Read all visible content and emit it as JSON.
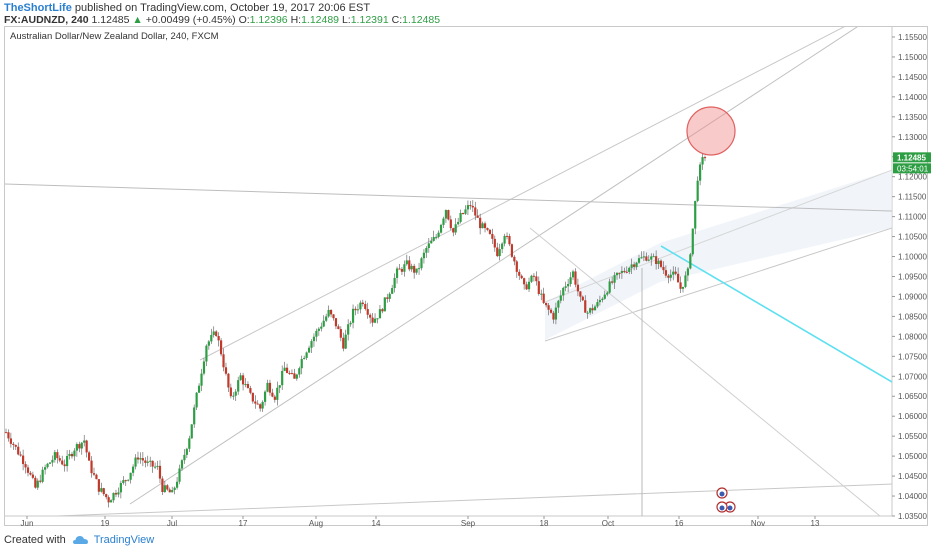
{
  "header": {
    "author": "TheShortLife",
    "published": "published on TradingView.com, October 19, 2017 20:06 EST",
    "symbol": "FX:AUDNZD, 240",
    "last": "1.12485",
    "change_arrow": "▲",
    "change": "+0.00499 (+0.45%)",
    "o_label": "O:",
    "o_value": "1.12396",
    "h_label": "H:",
    "h_value": "1.12489",
    "l_label": "L:",
    "l_value": "1.12391",
    "c_label": "C:",
    "c_value": "1.12485"
  },
  "footer": {
    "created_with": "Created with",
    "brand": "TradingView"
  },
  "colors": {
    "up": "#2e9e44",
    "down": "#c0392b",
    "accent": "#2a7fcf",
    "cyan": "#5ee0f0",
    "circle": "#f08a8a"
  },
  "chart_data": {
    "type": "candlestick",
    "title": "Australian Dollar/New Zealand Dollar, 240, FXCM",
    "x_ticks": [
      "Jun",
      "19",
      "Jul",
      "17",
      "Aug",
      "14",
      "Sep",
      "18",
      "Oct",
      "16",
      "Nov",
      "13"
    ],
    "y_ticks": [
      "1.15500",
      "1.15000",
      "1.14500",
      "1.14000",
      "1.13500",
      "1.13000",
      "1.12500",
      "1.12000",
      "1.11500",
      "1.11000",
      "1.10500",
      "1.10000",
      "1.09500",
      "1.09000",
      "1.08500",
      "1.08000",
      "1.07500",
      "1.07000",
      "1.06500",
      "1.06000",
      "1.05500",
      "1.05000",
      "1.04500",
      "1.04000",
      "1.03500"
    ],
    "ylim": [
      1.035,
      1.1575
    ],
    "price_label": "1.12485",
    "countdown_label": "03:54:01",
    "grid": false,
    "close_path": [
      [
        0,
        1.056
      ],
      [
        4,
        1.052
      ],
      [
        8,
        1.048
      ],
      [
        12,
        1.042
      ],
      [
        16,
        1.047
      ],
      [
        20,
        1.05
      ],
      [
        24,
        1.048
      ],
      [
        28,
        1.052
      ],
      [
        32,
        1.054
      ],
      [
        34,
        1.048
      ],
      [
        38,
        1.042
      ],
      [
        42,
        1.039
      ],
      [
        46,
        1.042
      ],
      [
        50,
        1.045
      ],
      [
        54,
        1.05
      ],
      [
        58,
        1.048
      ],
      [
        62,
        1.047
      ],
      [
        64,
        1.042
      ],
      [
        68,
        1.0405
      ],
      [
        71,
        1.046
      ],
      [
        75,
        1.055
      ],
      [
        78,
        1.065
      ],
      [
        82,
        1.078
      ],
      [
        86,
        1.081
      ],
      [
        88,
        1.076
      ],
      [
        92,
        1.064
      ],
      [
        96,
        1.07
      ],
      [
        100,
        1.065
      ],
      [
        104,
        1.062
      ],
      [
        107,
        1.068
      ],
      [
        110,
        1.065
      ],
      [
        114,
        1.072
      ],
      [
        118,
        1.069
      ],
      [
        120,
        1.073
      ],
      [
        124,
        1.078
      ],
      [
        128,
        1.082
      ],
      [
        132,
        1.086
      ],
      [
        135,
        1.083
      ],
      [
        138,
        1.078
      ],
      [
        142,
        1.086
      ],
      [
        146,
        1.089
      ],
      [
        150,
        1.084
      ],
      [
        153,
        1.086
      ],
      [
        156,
        1.09
      ],
      [
        160,
        1.096
      ],
      [
        164,
        1.098
      ],
      [
        168,
        1.096
      ],
      [
        172,
        1.102
      ],
      [
        176,
        1.105
      ],
      [
        180,
        1.112
      ],
      [
        183,
        1.106
      ],
      [
        186,
        1.11
      ],
      [
        190,
        1.113
      ],
      [
        194,
        1.108
      ],
      [
        198,
        1.105
      ],
      [
        201,
        1.101
      ],
      [
        204,
        1.106
      ],
      [
        208,
        1.099
      ],
      [
        212,
        1.092
      ],
      [
        216,
        1.095
      ],
      [
        220,
        1.088
      ],
      [
        224,
        1.085
      ],
      [
        228,
        1.092
      ],
      [
        232,
        1.096
      ],
      [
        235,
        1.089
      ],
      [
        238,
        1.086
      ],
      [
        242,
        1.088
      ],
      [
        246,
        1.092
      ],
      [
        250,
        1.095
      ],
      [
        254,
        1.097
      ],
      [
        258,
        1.099
      ],
      [
        262,
        1.1
      ],
      [
        266,
        1.099
      ],
      [
        270,
        1.096
      ],
      [
        274,
        1.095
      ],
      [
        276,
        1.092
      ],
      [
        279,
        1.096
      ],
      [
        281,
        1.107
      ],
      [
        283,
        1.12
      ],
      [
        285,
        1.124
      ],
      [
        286,
        1.12485
      ]
    ]
  }
}
